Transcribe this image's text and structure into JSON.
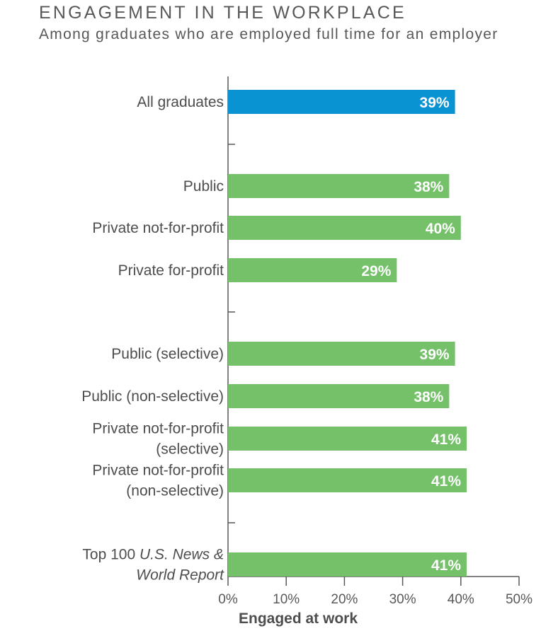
{
  "chart_data": {
    "type": "bar",
    "orientation": "horizontal",
    "title": "ENGAGEMENT IN THE WORKPLACE",
    "subtitle": "Among graduates who are employed full time for an employer",
    "xlabel": "Engaged at work",
    "ylabel": "",
    "xlim": [
      0,
      50
    ],
    "xticks": [
      "0%",
      "10%",
      "20%",
      "30%",
      "40%",
      "50%"
    ],
    "grid": false,
    "categories": [
      {
        "lines": [
          {
            "parts": [
              {
                "text": "All graduates"
              }
            ]
          }
        ],
        "value": 39,
        "label": "39%",
        "color": "#0a93d3",
        "group": 0
      },
      {
        "lines": [
          {
            "parts": [
              {
                "text": "Public"
              }
            ]
          }
        ],
        "value": 38,
        "label": "38%",
        "color": "#74c16a",
        "group": 1
      },
      {
        "lines": [
          {
            "parts": [
              {
                "text": "Private not-for-profit"
              }
            ]
          }
        ],
        "value": 40,
        "label": "40%",
        "color": "#74c16a",
        "group": 1
      },
      {
        "lines": [
          {
            "parts": [
              {
                "text": "Private for-profit"
              }
            ]
          }
        ],
        "value": 29,
        "label": "29%",
        "color": "#74c16a",
        "group": 1
      },
      {
        "lines": [
          {
            "parts": [
              {
                "text": "Public (selective)"
              }
            ]
          }
        ],
        "value": 39,
        "label": "39%",
        "color": "#74c16a",
        "group": 2
      },
      {
        "lines": [
          {
            "parts": [
              {
                "text": "Public (non-selective)"
              }
            ]
          }
        ],
        "value": 38,
        "label": "38%",
        "color": "#74c16a",
        "group": 2
      },
      {
        "lines": [
          {
            "parts": [
              {
                "text": "Private not-for-profit"
              }
            ]
          },
          {
            "parts": [
              {
                "text": "(selective)"
              }
            ]
          }
        ],
        "value": 41,
        "label": "41%",
        "color": "#74c16a",
        "group": 2
      },
      {
        "lines": [
          {
            "parts": [
              {
                "text": "Private not-for-profit"
              }
            ]
          },
          {
            "parts": [
              {
                "text": "(non-selective)"
              }
            ]
          }
        ],
        "value": 41,
        "label": "41%",
        "color": "#74c16a",
        "group": 2
      },
      {
        "lines": [
          {
            "parts": [
              {
                "text": "Top 100 "
              },
              {
                "text": "U.S. News &",
                "italic": true
              }
            ]
          },
          {
            "parts": [
              {
                "text": "World Report",
                "italic": true
              }
            ]
          }
        ],
        "value": 41,
        "label": "41%",
        "color": "#74c16a",
        "group": 3
      }
    ]
  }
}
